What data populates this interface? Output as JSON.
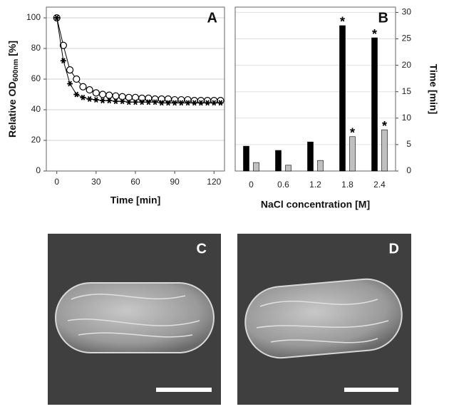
{
  "chart_data": [
    {
      "type": "line",
      "panel_label": "A",
      "xlabel": "Time [min]",
      "ylabel": "Relative OD",
      "ylabel_subscript": "600nm",
      "ylabel_suffix": "[%]",
      "x": [
        0,
        5,
        10,
        15,
        20,
        25,
        30,
        35,
        40,
        45,
        50,
        55,
        60,
        65,
        70,
        75,
        80,
        85,
        90,
        95,
        100,
        105,
        110,
        115,
        120,
        125
      ],
      "series": [
        {
          "marker": "circle",
          "color": "#000000",
          "values": [
            100,
            82,
            66,
            60,
            55,
            53,
            51,
            50,
            49.5,
            49,
            48.5,
            48,
            48,
            47.5,
            47.5,
            47,
            47,
            47,
            46.5,
            46.5,
            46.5,
            46,
            46,
            46,
            46,
            46
          ]
        },
        {
          "marker": "star",
          "color": "#000000",
          "values": [
            100,
            72,
            57,
            50,
            48,
            47,
            46.5,
            46,
            46,
            45.5,
            45.5,
            45,
            45,
            45,
            45,
            45,
            44.5,
            44.5,
            44.5,
            44.5,
            44.5,
            44.5,
            44.5,
            44.5,
            44.5,
            44.5
          ]
        }
      ],
      "xlim": [
        -8,
        128
      ],
      "xticks": [
        0,
        30,
        60,
        90,
        120
      ],
      "ylim": [
        0,
        107
      ],
      "yticks": [
        0,
        20,
        40,
        60,
        80,
        100
      ],
      "grid": true
    },
    {
      "type": "bar",
      "panel_label": "B",
      "xlabel": "NaCl concentration [M]",
      "ylabel": "Time [min]",
      "categories": [
        "0",
        "0.6",
        "1.2",
        "1.8",
        "2.4"
      ],
      "series": [
        {
          "color": "#000000",
          "values": [
            4.7,
            3.9,
            5.5,
            27.5,
            25.2
          ]
        },
        {
          "color": "#c0c0c0",
          "values": [
            1.6,
            1.1,
            2.0,
            6.5,
            7.8
          ]
        }
      ],
      "annotations": [
        {
          "text": "*",
          "series": 0,
          "category": 3
        },
        {
          "text": "*",
          "series": 0,
          "category": 4
        },
        {
          "text": "*",
          "series": 1,
          "category": 3
        },
        {
          "text": "*",
          "series": 1,
          "category": 4
        }
      ],
      "ylim": [
        0,
        31
      ],
      "yticks": [
        0,
        5,
        10,
        15,
        20,
        25,
        30
      ],
      "y_axis_side": "right",
      "grid": true
    }
  ],
  "images": [
    {
      "label": "C"
    },
    {
      "label": "D"
    }
  ]
}
